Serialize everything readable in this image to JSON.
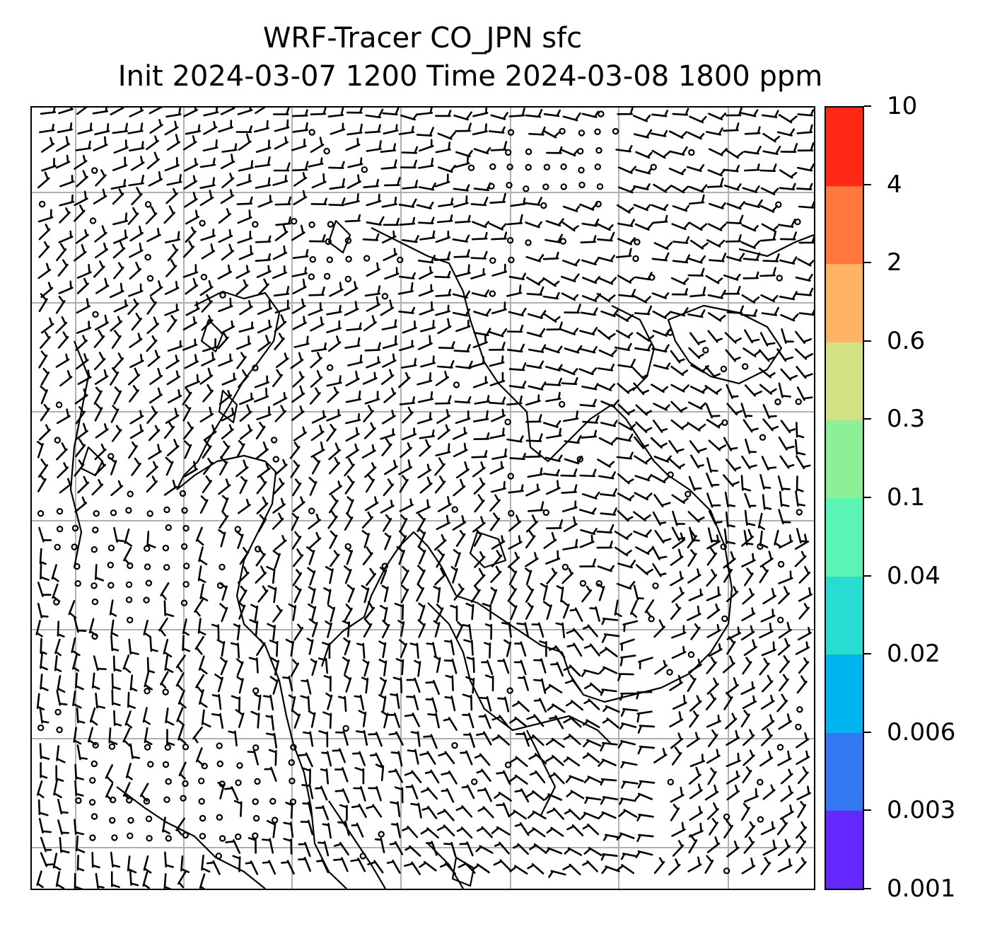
{
  "title": {
    "line1": "WRF-Tracer CO_JPN sfc",
    "line2": "Init 2024-03-07 1200 Time 2024-03-08 1800 ppm"
  },
  "colorbar": {
    "levels": [
      "0.001",
      "0.003",
      "0.006",
      "0.02",
      "0.04",
      "0.1",
      "0.3",
      "0.6",
      "2",
      "4",
      "10"
    ],
    "colors": [
      "#6428ff",
      "#3278f0",
      "#00b4f0",
      "#28dcd2",
      "#5af5b4",
      "#8cf096",
      "#d2e182",
      "#ffb464",
      "#ff783c",
      "#ff2814"
    ]
  },
  "map": {
    "gridlines": "on",
    "barbs": "wind-barbs",
    "calm": "calm-circles",
    "coastline": "coastlines"
  }
}
